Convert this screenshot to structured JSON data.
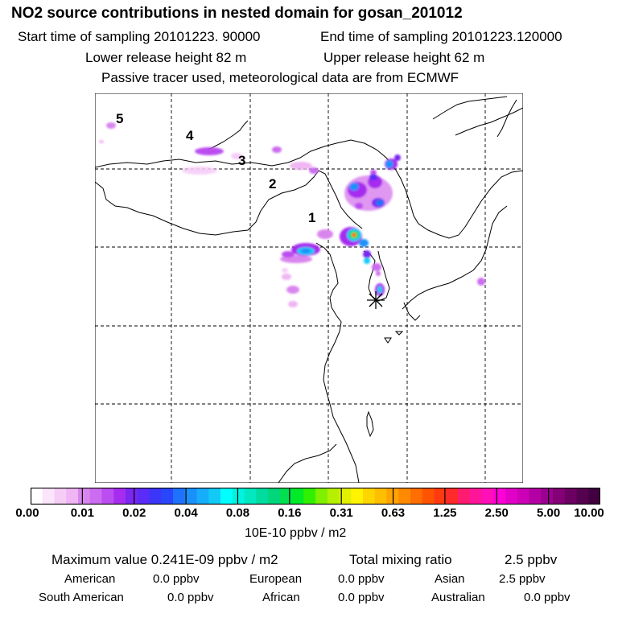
{
  "header": {
    "title": "NO2 source contributions in nested domain for gosan_201012",
    "start_time_label": "Start time of sampling 20101223. 90000",
    "end_time_label": "End time of sampling 20101223.120000",
    "lower_height_label": "Lower release height   82 m",
    "upper_height_label": "Upper release height   62 m",
    "tracer_note": "Passive tracer used, meteorological data are from ECMWF"
  },
  "map": {
    "region_labels": [
      "1",
      "2",
      "3",
      "4",
      "5"
    ],
    "receptor": "gosan",
    "receptor_marker": "asterisk-icon"
  },
  "colorbar": {
    "tick_labels": [
      "0.00",
      "0.01",
      "0.02",
      "0.04",
      "0.08",
      "0.16",
      "0.31",
      "0.63",
      "1.25",
      "2.50",
      "5.00",
      "10.00"
    ],
    "colors": [
      "#ffffff",
      "#fbe5fb",
      "#f6cdf7",
      "#f0b5f3",
      "#d985ee",
      "#cc6cf0",
      "#bb4ef0",
      "#a62cf0",
      "#7a27f0",
      "#5b2cf8",
      "#3b36f9",
      "#2a46fb",
      "#1e72fb",
      "#1a90fb",
      "#16aefb",
      "#12caf6",
      "#00ffff",
      "#00f3e0",
      "#00e8c0",
      "#00dca0",
      "#00d67c",
      "#00e050",
      "#00ea28",
      "#30f000",
      "#7ef000",
      "#b5f000",
      "#e2f000",
      "#fff300",
      "#ffd500",
      "#ffbe00",
      "#ffa400",
      "#ff8a00",
      "#ff6e00",
      "#ff5300",
      "#ff3a10",
      "#ff2a2a",
      "#ff1b70",
      "#ff1599",
      "#ff10b8",
      "#ff00d8",
      "#e200c8",
      "#cc00b6",
      "#b300a4",
      "#9b0090",
      "#830077",
      "#6b0062",
      "#560050",
      "#420040"
    ],
    "unit_label": "10E-10 ppbv / m2"
  },
  "summary": {
    "max_label": "Maximum value  0.241E-09 ppbv / m2",
    "total_label": "Total mixing ratio",
    "total_value": "2.5 ppbv",
    "contributions": [
      {
        "name": "American",
        "value": "0.0 ppbv"
      },
      {
        "name": "European",
        "value": "0.0 ppbv"
      },
      {
        "name": "Asian",
        "value": "2.5 ppbv"
      },
      {
        "name": "South American",
        "value": "0.0 ppbv"
      },
      {
        "name": "African",
        "value": "0.0 ppbv"
      },
      {
        "name": "Australian",
        "value": "0.0 ppbv"
      }
    ]
  }
}
